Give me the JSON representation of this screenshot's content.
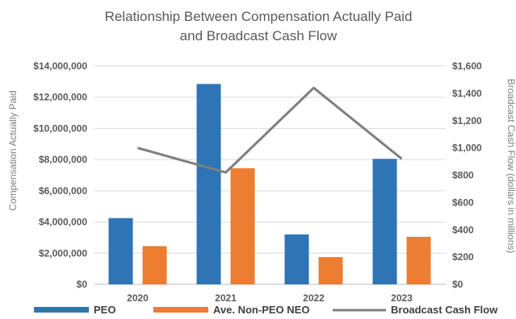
{
  "chart_data": {
    "type": "bar",
    "title_lines": [
      "Relationship Between Compensation Actually Paid",
      "and Broadcast Cash Flow"
    ],
    "categories": [
      "2020",
      "2021",
      "2022",
      "2023"
    ],
    "series": [
      {
        "name": "PEO",
        "kind": "bar",
        "axis": "left",
        "color": "#2e75b6",
        "values": [
          4250000,
          12850000,
          3200000,
          8050000
        ]
      },
      {
        "name": "Ave. Non-PEO NEO",
        "kind": "bar",
        "axis": "left",
        "color": "#ed7d31",
        "values": [
          2450000,
          7450000,
          1750000,
          3050000
        ]
      },
      {
        "name": "Broadcast Cash Flow",
        "kind": "line",
        "axis": "right",
        "color": "#7f7f7f",
        "values": [
          1000,
          820,
          1440,
          920
        ]
      }
    ],
    "ylabel": "Compensation Actually Paid",
    "y2label": "Broadcast Cash Flow (dollars in millions)",
    "ylim": [
      0,
      14000000
    ],
    "y2lim": [
      0,
      1600
    ],
    "yticks": [
      "$0",
      "$2,000,000",
      "$4,000,000",
      "$6,000,000",
      "$8,000,000",
      "$10,000,000",
      "$12,000,000",
      "$14,000,000"
    ],
    "y2ticks": [
      "$0",
      "$200",
      "$400",
      "$600",
      "$800",
      "$1,000",
      "$1,200",
      "$1,400",
      "$1,600"
    ],
    "grid": true,
    "legend": "bottom"
  }
}
